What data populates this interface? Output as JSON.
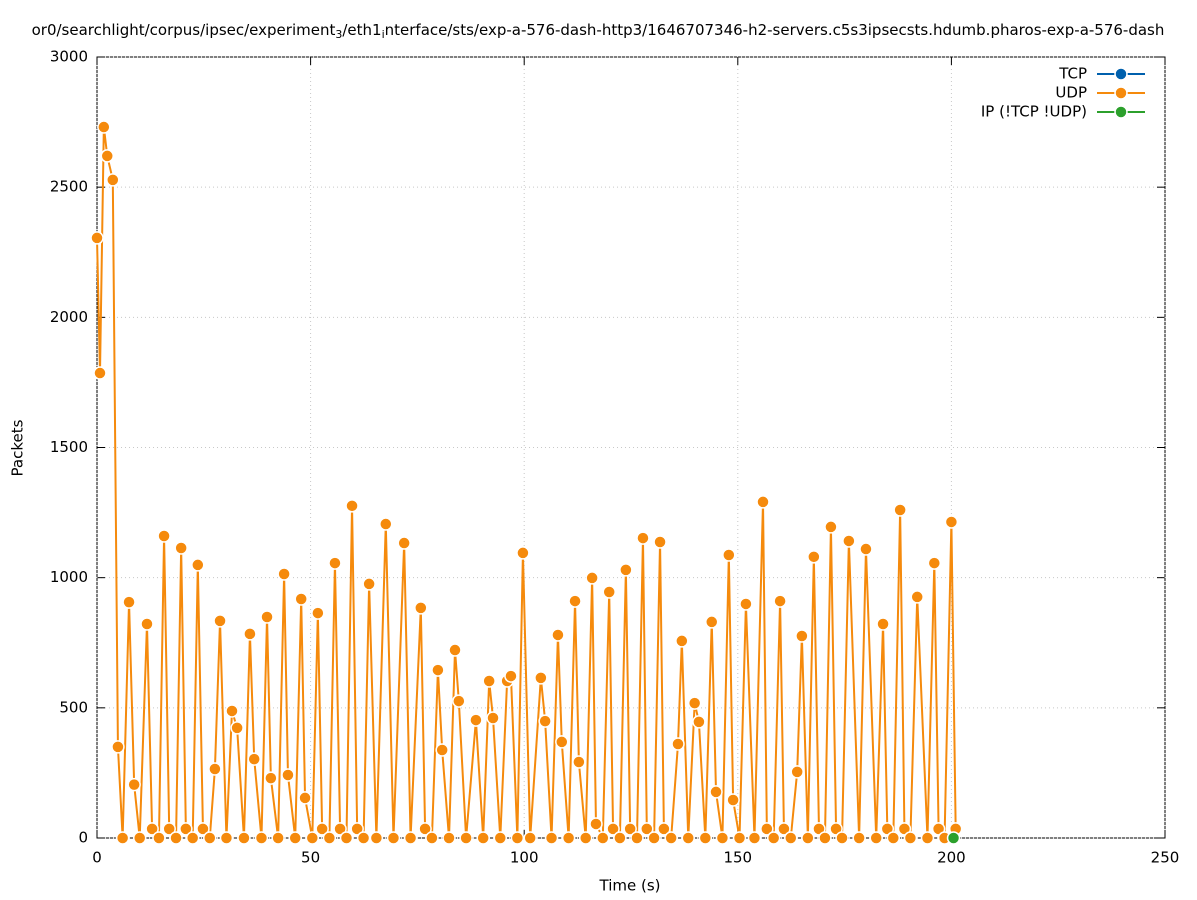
{
  "chart_data": {
    "type": "line",
    "title": [
      "or0/searchlight/corpus/ipsec/experiment",
      "3",
      "/eth1",
      "i",
      "nterface/sts/exp-a-576-dash-http3/1646707346-h2-servers.c5s3ipsecsts.hdumb.pharos-exp-a-576-dash"
    ],
    "xlabel": "Time (s)",
    "ylabel": "Packets",
    "xlim": [
      0,
      250
    ],
    "xticks": [
      0,
      50,
      100,
      150,
      200,
      250
    ],
    "ylim": [
      0,
      3000
    ],
    "yticks": [
      0,
      500,
      1000,
      1500,
      2000,
      2500,
      3000
    ],
    "grid": true,
    "legend": "top-right",
    "series": [
      {
        "name": "TCP",
        "color": "#0060ad",
        "x": [],
        "values": []
      },
      {
        "name": "UDP",
        "color": "#f58a0c",
        "x": [
          0,
          0.7,
          1.6,
          2.4,
          3.7,
          4.9,
          6,
          7.5,
          8.7,
          10,
          11.7,
          12.9,
          14.5,
          15.7,
          16.9,
          18.5,
          19.7,
          20.8,
          22.4,
          23.6,
          24.8,
          26.4,
          27.6,
          28.8,
          30.3,
          31.6,
          32.8,
          34.4,
          35.8,
          36.8,
          38.5,
          39.8,
          40.7,
          42.4,
          43.8,
          44.7,
          46.4,
          47.8,
          48.7,
          50.4,
          51.7,
          52.7,
          54.4,
          55.7,
          56.9,
          58.4,
          59.7,
          60.9,
          62.4,
          63.7,
          65.4,
          67.6,
          69.4,
          71.9,
          73.4,
          75.8,
          76.8,
          78.4,
          79.8,
          80.8,
          82.4,
          83.8,
          84.7,
          86.4,
          88.7,
          90.4,
          91.8,
          92.7,
          94.4,
          96,
          96.9,
          98.4,
          99.7,
          101.4,
          103.9,
          104.9,
          106.4,
          107.9,
          108.8,
          110.4,
          111.9,
          112.8,
          114.4,
          115.9,
          116.8,
          118.4,
          119.9,
          120.8,
          122.4,
          123.8,
          124.8,
          126.4,
          127.8,
          128.7,
          130.4,
          131.8,
          132.7,
          134.4,
          136,
          136.9,
          138.4,
          139.9,
          140.9,
          142.4,
          143.9,
          144.9,
          146.4,
          147.9,
          148.9,
          150.4,
          151.9,
          153.9,
          155.9,
          156.8,
          158.4,
          159.9,
          160.8,
          162.4,
          163.9,
          165,
          166.4,
          167.8,
          169,
          170.4,
          171.8,
          173,
          174.4,
          176,
          178.4,
          180,
          182.4,
          184,
          185,
          186.4,
          188,
          189,
          190.4,
          192,
          194.4,
          196,
          197,
          198.4,
          200,
          201
        ],
        "values": [
          2305,
          1786,
          2731,
          2620,
          2528,
          350,
          0,
          906,
          205,
          0,
          822,
          35,
          0,
          1160,
          35,
          0,
          1114,
          35,
          0,
          1049,
          35,
          0,
          265,
          834,
          0,
          488,
          423,
          0,
          784,
          303,
          0,
          849,
          230,
          0,
          1014,
          242,
          0,
          918,
          154,
          0,
          864,
          35,
          0,
          1056,
          35,
          0,
          1276,
          35,
          0,
          976,
          0,
          1206,
          0,
          1133,
          0,
          884,
          35,
          0,
          645,
          338,
          0,
          722,
          526,
          0,
          453,
          0,
          603,
          461,
          0,
          603,
          622,
          0,
          1095,
          0,
          615,
          449,
          0,
          780,
          369,
          0,
          910,
          292,
          0,
          999,
          54,
          0,
          945,
          35,
          0,
          1030,
          35,
          0,
          1152,
          35,
          0,
          1137,
          35,
          0,
          361,
          757,
          0,
          518,
          446,
          0,
          830,
          177,
          0,
          1087,
          146,
          0,
          899,
          0,
          1291,
          35,
          0,
          910,
          35,
          0,
          254,
          776,
          0,
          1080,
          35,
          0,
          1195,
          35,
          0,
          1141,
          0,
          1110,
          0,
          822,
          35,
          0,
          1260,
          35,
          0,
          926,
          0,
          1056,
          35,
          0,
          1214,
          35
        ]
      },
      {
        "name": "IP (!TCP  !UDP)",
        "color": "#2ca02c",
        "x": [
          200.5
        ],
        "values": [
          0
        ]
      }
    ]
  }
}
